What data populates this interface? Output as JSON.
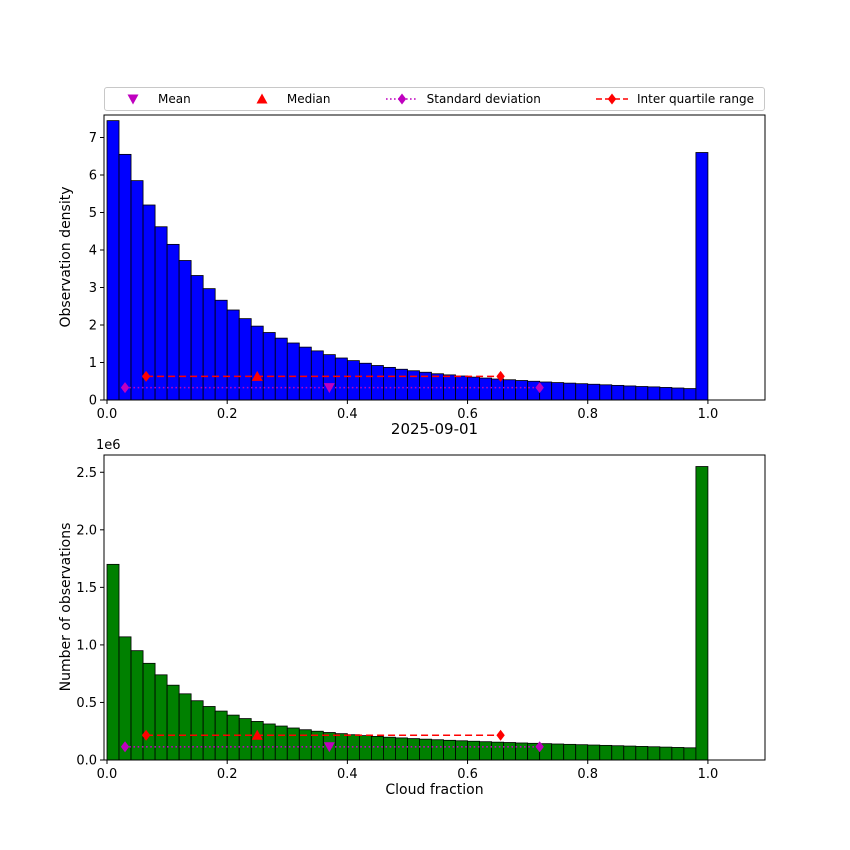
{
  "figure": {
    "background": "#ffffff"
  },
  "legend": {
    "items": [
      {
        "label": "Mean",
        "marker": "triangle-down",
        "color": "#bf00bf",
        "line": "none"
      },
      {
        "label": "Median",
        "marker": "triangle-up",
        "color": "#ff0000",
        "line": "none"
      },
      {
        "label": "Standard deviation",
        "marker": "diamond",
        "color": "#bf00bf",
        "line": "dotted"
      },
      {
        "label": "Inter quartile range",
        "marker": "diamond",
        "color": "#ff0000",
        "line": "dashed"
      }
    ]
  },
  "chart_data": [
    {
      "type": "bar",
      "subtype": "histogram",
      "title": "2025-09-01",
      "xlabel": "",
      "ylabel": "Observation density",
      "bar_color": "#0000ff",
      "bar_edge_color": "#000000",
      "bins": {
        "start": 0.0,
        "width": 0.02
      },
      "values": [
        7.45,
        6.55,
        5.85,
        5.2,
        4.62,
        4.15,
        3.72,
        3.32,
        2.97,
        2.66,
        2.4,
        2.17,
        1.97,
        1.8,
        1.65,
        1.52,
        1.41,
        1.31,
        1.21,
        1.12,
        1.05,
        0.98,
        0.92,
        0.87,
        0.82,
        0.78,
        0.74,
        0.7,
        0.67,
        0.64,
        0.61,
        0.585,
        0.56,
        0.54,
        0.52,
        0.5,
        0.48,
        0.465,
        0.45,
        0.435,
        0.42,
        0.405,
        0.39,
        0.375,
        0.36,
        0.35,
        0.335,
        0.32,
        0.305,
        6.6
      ],
      "xlim": [
        -0.005,
        1.095
      ],
      "ylim": [
        0,
        7.6
      ],
      "xticks": {
        "values": [
          0,
          0.2,
          0.4,
          0.6,
          0.8,
          1.0
        ],
        "labels": [
          "0.0",
          "0.2",
          "0.4",
          "0.6",
          "0.8",
          "1.0"
        ]
      },
      "yticks": {
        "values": [
          0,
          1,
          2,
          3,
          4,
          5,
          6,
          7
        ],
        "labels": [
          "0",
          "1",
          "2",
          "3",
          "4",
          "5",
          "6",
          "7"
        ]
      },
      "grid": false,
      "legend_position": "upper center above axes",
      "annotations": [
        {
          "name": "inter-quartile-range",
          "type": "line",
          "x1": 0.065,
          "x2": 0.655,
          "y": 0.63,
          "color": "#ff0000",
          "style": "dashed",
          "marker": "diamond"
        },
        {
          "name": "standard-deviation",
          "type": "line",
          "x1": 0.03,
          "x2": 0.72,
          "y": 0.33,
          "color": "#bf00bf",
          "style": "dotted",
          "marker": "diamond"
        },
        {
          "name": "median",
          "type": "marker",
          "x": 0.25,
          "y": 0.63,
          "color": "#ff0000",
          "marker": "triangle-up"
        },
        {
          "name": "mean",
          "type": "marker",
          "x": 0.37,
          "y": 0.33,
          "color": "#bf00bf",
          "marker": "triangle-down"
        }
      ]
    },
    {
      "type": "bar",
      "subtype": "histogram",
      "title": "",
      "xlabel": "Cloud fraction",
      "ylabel": "Number of observations",
      "offset_text": "1e6",
      "y_unit": "1e6",
      "bar_color": "#008000",
      "bar_edge_color": "#000000",
      "bins": {
        "start": 0.0,
        "width": 0.02
      },
      "values": [
        1.7,
        1.07,
        0.95,
        0.84,
        0.74,
        0.65,
        0.575,
        0.515,
        0.465,
        0.425,
        0.39,
        0.36,
        0.335,
        0.313,
        0.295,
        0.278,
        0.263,
        0.25,
        0.239,
        0.229,
        0.22,
        0.212,
        0.205,
        0.198,
        0.192,
        0.186,
        0.181,
        0.176,
        0.171,
        0.167,
        0.163,
        0.159,
        0.155,
        0.152,
        0.148,
        0.145,
        0.142,
        0.139,
        0.136,
        0.133,
        0.13,
        0.127,
        0.124,
        0.121,
        0.118,
        0.115,
        0.112,
        0.109,
        0.106,
        2.55
      ],
      "xlim": [
        -0.005,
        1.095
      ],
      "ylim": [
        0,
        2.65
      ],
      "xticks": {
        "values": [
          0,
          0.2,
          0.4,
          0.6,
          0.8,
          1.0
        ],
        "labels": [
          "0.0",
          "0.2",
          "0.4",
          "0.6",
          "0.8",
          "1.0"
        ]
      },
      "yticks": {
        "values": [
          0,
          0.5,
          1.0,
          1.5,
          2.0,
          2.5
        ],
        "labels": [
          "0.0",
          "0.5",
          "1.0",
          "1.5",
          "2.0",
          "2.5"
        ]
      },
      "grid": false,
      "annotations": [
        {
          "name": "inter-quartile-range",
          "type": "line",
          "x1": 0.065,
          "x2": 0.655,
          "y": 0.215,
          "color": "#ff0000",
          "style": "dashed",
          "marker": "diamond"
        },
        {
          "name": "standard-deviation",
          "type": "line",
          "x1": 0.03,
          "x2": 0.72,
          "y": 0.115,
          "color": "#bf00bf",
          "style": "dotted",
          "marker": "diamond"
        },
        {
          "name": "median",
          "type": "marker",
          "x": 0.25,
          "y": 0.215,
          "color": "#ff0000",
          "marker": "triangle-up"
        },
        {
          "name": "mean",
          "type": "marker",
          "x": 0.37,
          "y": 0.115,
          "color": "#bf00bf",
          "marker": "triangle-down"
        }
      ]
    }
  ]
}
